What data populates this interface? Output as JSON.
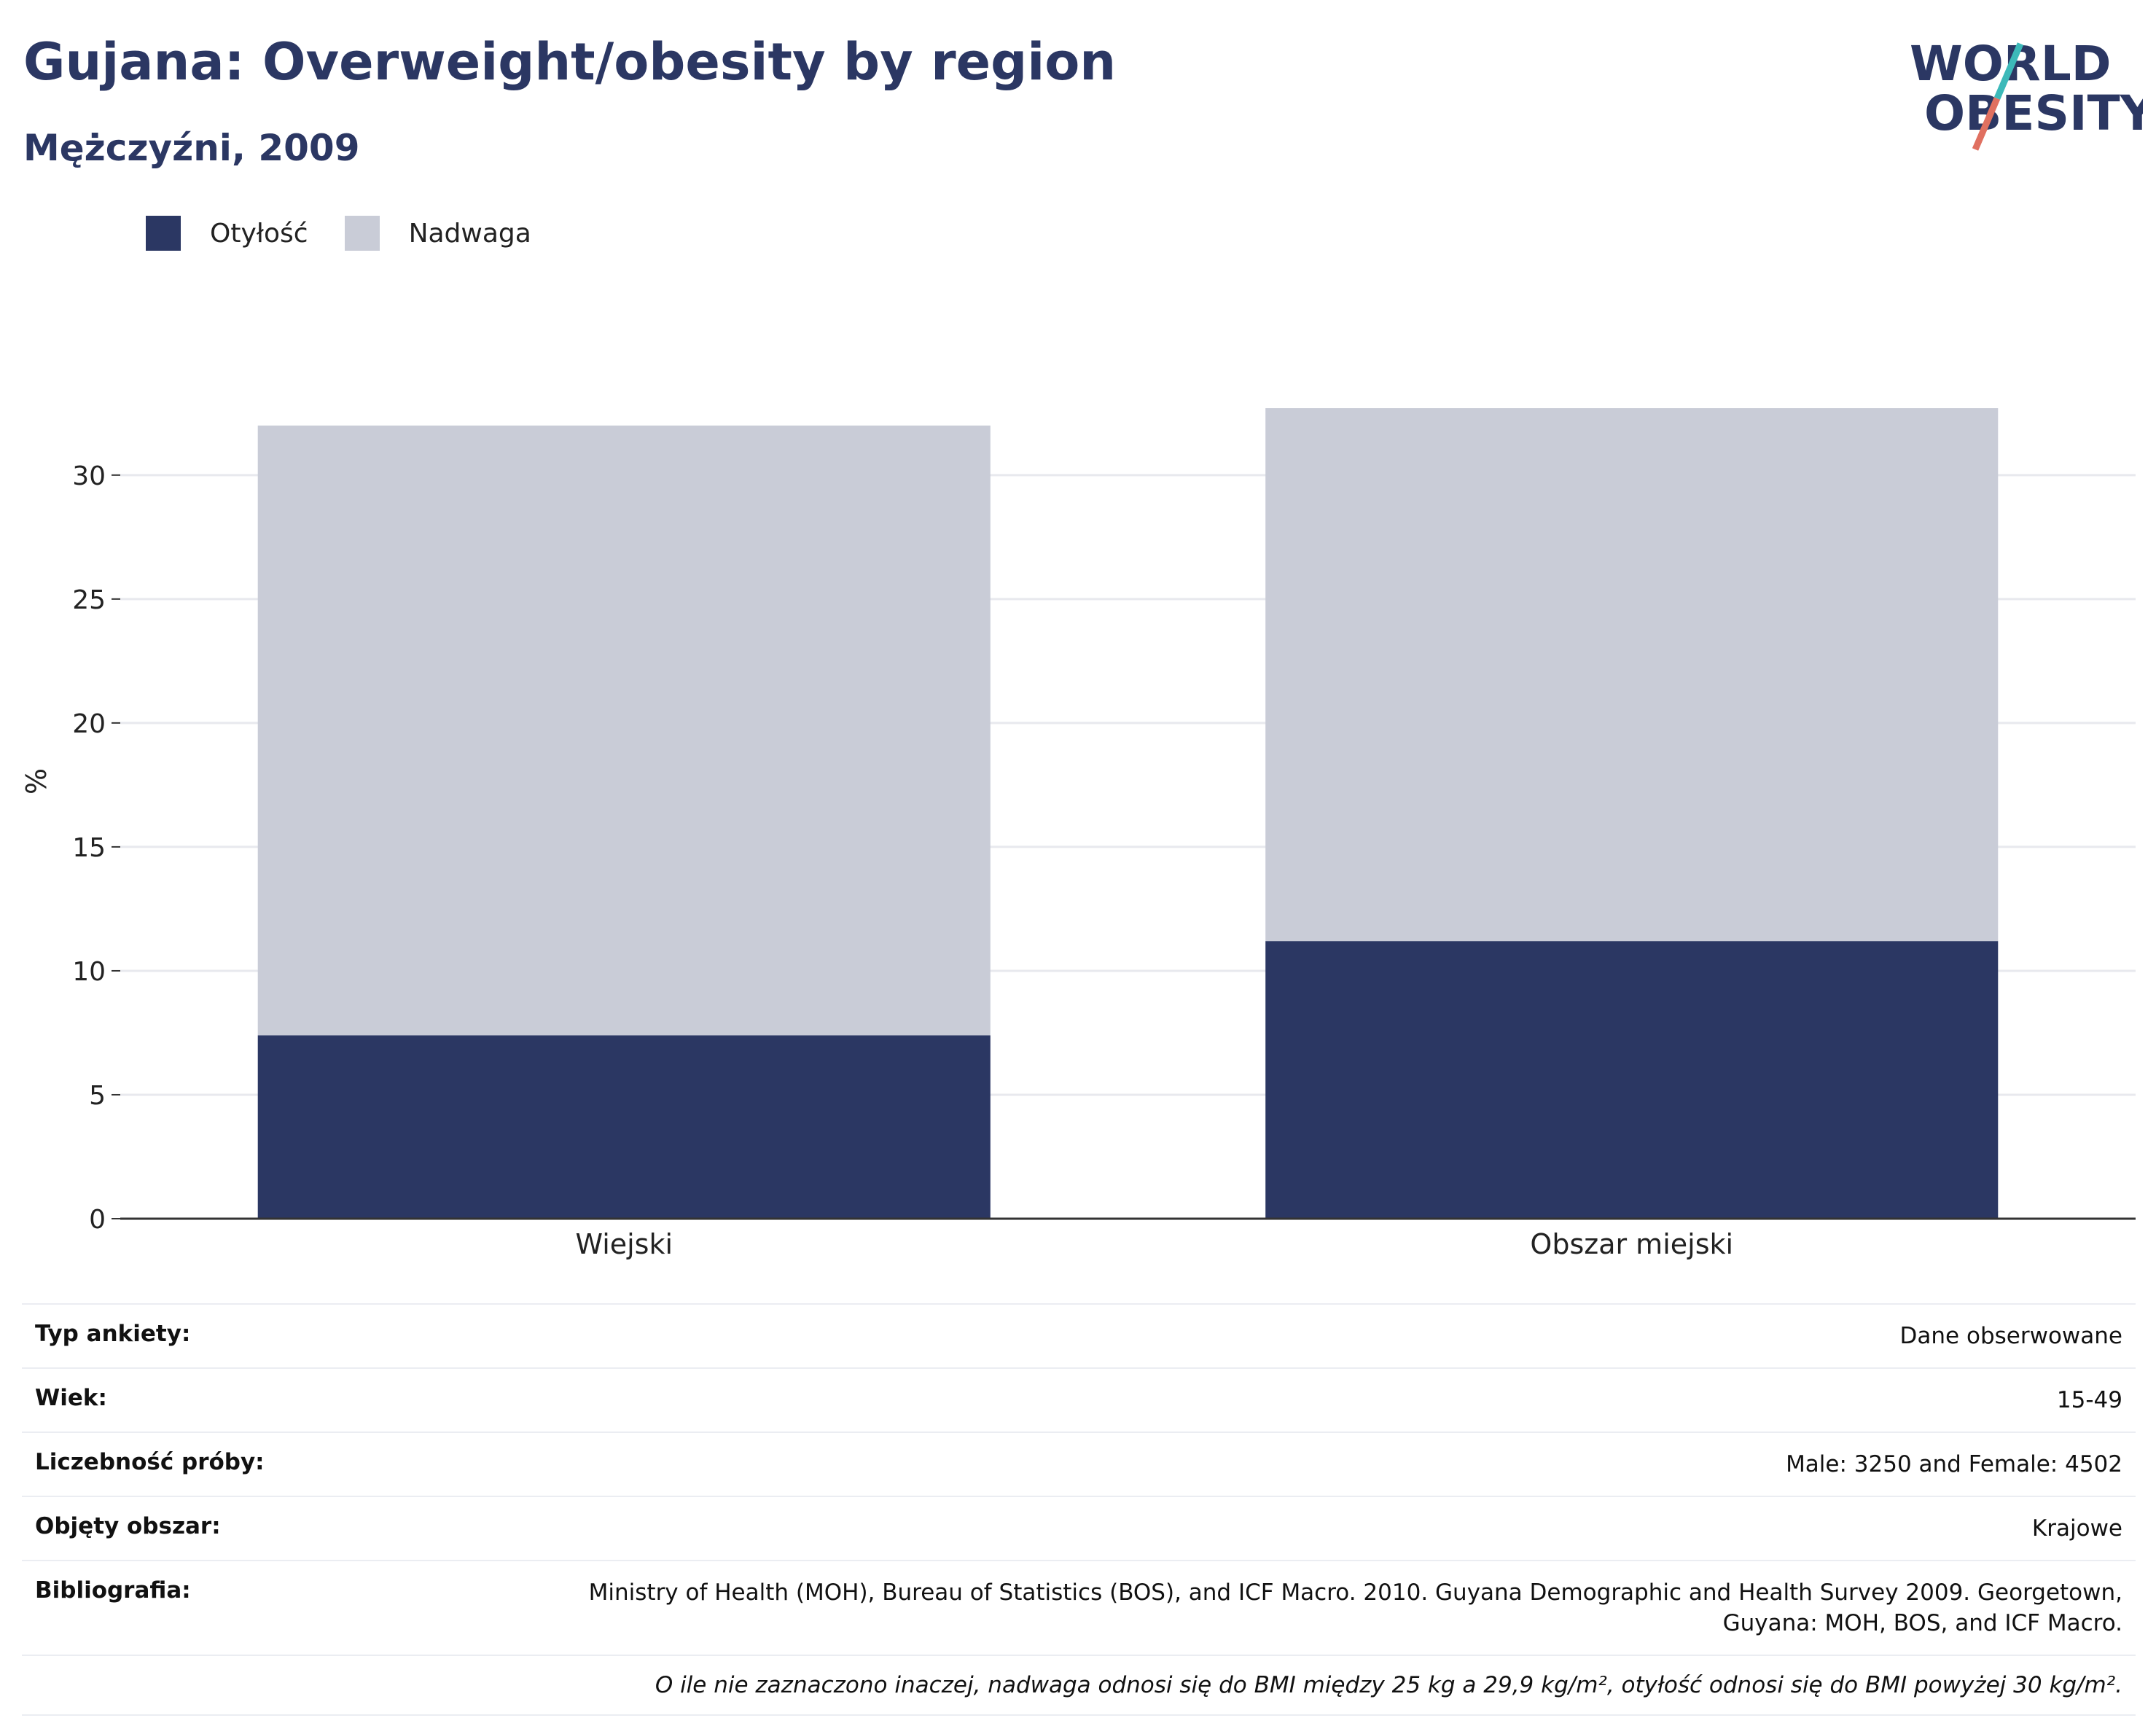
{
  "header": {
    "title": "Gujana: Overweight/obesity by region",
    "subtitle": "Mężczyźni, 2009"
  },
  "logo": {
    "line1": "WORLD",
    "line2": "OBESITY"
  },
  "colors": {
    "obesity": "#2b3763",
    "overweight": "#c9ccd7",
    "grid": "#e8e9ee",
    "axis": "#333333",
    "title": "#2b3763"
  },
  "legend": [
    {
      "label": "Otyłość",
      "color": "#2b3763"
    },
    {
      "label": "Nadwaga",
      "color": "#c9ccd7"
    }
  ],
  "chart_data": {
    "type": "bar",
    "stacked": true,
    "categories": [
      "Wiejski",
      "Obszar miejski"
    ],
    "series": [
      {
        "name": "Otyłość",
        "values": [
          7.4,
          11.2
        ]
      },
      {
        "name": "Nadwaga",
        "values": [
          24.6,
          21.5
        ]
      }
    ],
    "ylabel": "%",
    "ylim": [
      0,
      32.7
    ],
    "yticks": [
      0,
      5,
      10,
      15,
      20,
      25,
      30
    ],
    "grid": true,
    "legend_position": "top-left"
  },
  "meta": [
    {
      "key": "Typ ankiety:",
      "value": "Dane obserwowane"
    },
    {
      "key": "Wiek:",
      "value": "15-49"
    },
    {
      "key": "Liczebność próby:",
      "value": "Male: 3250 and Female: 4502"
    },
    {
      "key": "Objęty obszar:",
      "value": "Krajowe"
    },
    {
      "key": "Bibliografia:",
      "value": "Ministry of Health (MOH), Bureau of Statistics (BOS), and ICF Macro. 2010. Guyana Demographic and Health Survey 2009. Georgetown, Guyana: MOH, BOS, and ICF Macro."
    }
  ],
  "note": "O ile nie zaznaczono inaczej, nadwaga odnosi się do BMI między 25 kg a 29,9 kg/m², otyłość odnosi się do BMI powyżej 30 kg/m²."
}
